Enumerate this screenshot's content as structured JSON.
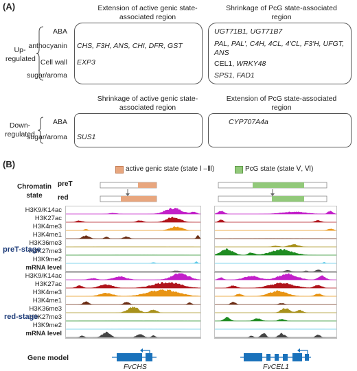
{
  "panel_a": {
    "label": "(A)",
    "col1_title": "Extension of active genic state-associated region",
    "col2_title": "Shrinkage of PcG state-associated region",
    "col3_title": "Shrinkage of active genic state-associated region",
    "col4_title": "Extension of PcG state-associated region",
    "up_label": "Up-regulated",
    "down_label": "Down-regulated",
    "up_rows": [
      {
        "category": "ABA",
        "left": "",
        "right": "UGT71B1, UGT71B7",
        "right_italic": true
      },
      {
        "category": "anthocyanin",
        "left": "CHS, F3H, ANS, CHI, DFR, GST",
        "right": "PAL, PAL', C4H, 4CL, 4'CL, F3'H, UFGT, ANS",
        "right_italic": true
      },
      {
        "category": "Cell wall",
        "left": "EXP3",
        "right_plain": "CEL1, ",
        "right_it": "WRKY48"
      },
      {
        "category": "sugar/aroma",
        "left": "",
        "right": "SPS1, FAD1",
        "right_italic": true
      }
    ],
    "down_rows": [
      {
        "category": "ABA",
        "left": "",
        "right": "CYP707A4a"
      },
      {
        "category": "sugar/aroma",
        "left": "SUS1",
        "right": ""
      }
    ]
  },
  "panel_b": {
    "label": "(B)",
    "legend_active": "active genic state (state Ⅰ –Ⅲ)",
    "legend_pcg": "PcG state (state Ⅴ, Ⅵ)",
    "chromatin_state_label": "Chromatin state",
    "pret_label": "preT",
    "red_label": "red",
    "stage_pret": "preT-stage",
    "stage_red": "red-stage",
    "tracks": [
      "H3K9/K14ac",
      "H3K27ac",
      "H3K4me3",
      "H3K4me1",
      "H3K36me3",
      "H3K27me3",
      "H3K9me2",
      "mRNA level"
    ],
    "gene_model_label": "Gene model",
    "gene_left": "FvCHS",
    "gene_right": "FvCEL1",
    "colors": {
      "active": "#e8a67e",
      "pcg": "#92c97a",
      "gene": "#1a72bb",
      "tracks": [
        "#c21fc9",
        "#b0151c",
        "#e89414",
        "#6b2d14",
        "#a8911c",
        "#1f8c22",
        "#5ac8e8",
        "#444444"
      ]
    }
  }
}
